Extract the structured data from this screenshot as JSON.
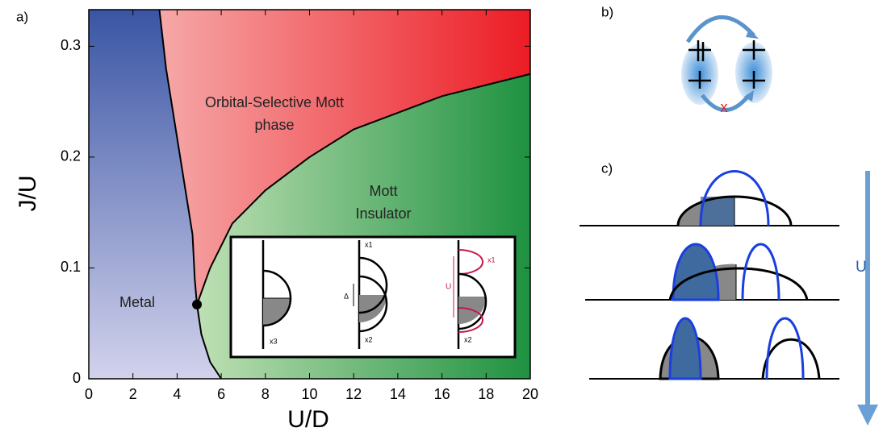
{
  "chart_data": {
    "type": "phase",
    "xlabel": "U/D",
    "ylabel": "J/U",
    "xlim": [
      0,
      20
    ],
    "ylim": [
      0,
      0.333
    ],
    "xticks": [
      0,
      2,
      4,
      6,
      8,
      10,
      12,
      14,
      16,
      18,
      20
    ],
    "yticks": [
      0,
      0.1,
      0.2,
      0.3
    ],
    "boundaries": [
      {
        "x": [
          3.2,
          3.5,
          3.9,
          4.3,
          4.7,
          4.8,
          4.9
        ],
        "y": [
          0.333,
          0.28,
          0.23,
          0.18,
          0.13,
          0.09,
          0.067
        ]
      },
      {
        "x": [
          4.9,
          5.1,
          5.5,
          6.0
        ],
        "y": [
          0.067,
          0.04,
          0.015,
          0
        ]
      },
      {
        "x": [
          4.9,
          5.5,
          6.5,
          8,
          10,
          12,
          14,
          16,
          18,
          20
        ],
        "y": [
          0.067,
          0.1,
          0.14,
          0.17,
          0.2,
          0.225,
          0.24,
          0.255,
          0.265,
          0.275
        ]
      }
    ],
    "critical_point": {
      "x": 4.9,
      "y": 0.067
    },
    "regions": [
      {
        "lines": [
          "Metal"
        ],
        "colors": [
          "#3a55a4",
          "#d2d2ec"
        ]
      },
      {
        "lines": [
          "Orbital-Selective Mott",
          "phase"
        ],
        "colors": [
          "#f6a8a8",
          "#ec1c24"
        ]
      },
      {
        "lines": [
          "Mott",
          "Insulator"
        ],
        "colors": [
          "#bfe0b4",
          "#1e9140"
        ]
      }
    ]
  },
  "panels": {
    "a": "a)",
    "b": "b)",
    "c": "c)"
  },
  "inset": {
    "left": "x3",
    "mid_top": "x1",
    "mid_gap": "Δ",
    "mid_bottom": "x2",
    "right_gap": "U",
    "right_top": "x1",
    "right_bottom": "x2"
  },
  "panel_b": {
    "blocked": "x"
  },
  "panel_c": {
    "arrow": "U"
  }
}
